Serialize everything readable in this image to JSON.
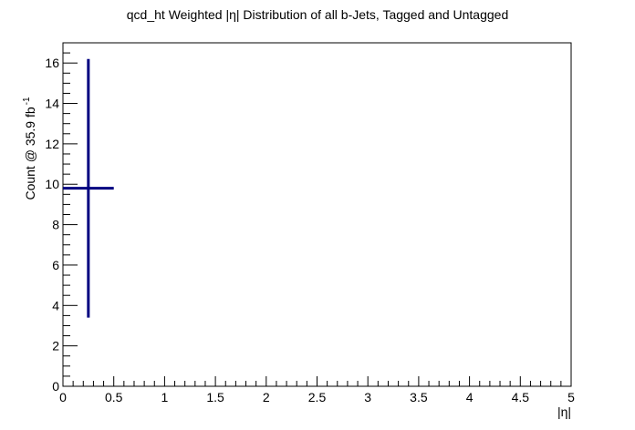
{
  "chart_data": {
    "type": "scatter",
    "title": "qcd_ht Weighted |η| Distribution of all b-Jets, Tagged and Untagged",
    "xlabel": "|η|",
    "ylabel_main": "Count @ 35.9 fb",
    "ylabel_sup": "-1",
    "xlim": [
      0,
      5
    ],
    "ylim": [
      0,
      17
    ],
    "x_ticks": [
      0,
      0.5,
      1,
      1.5,
      2,
      2.5,
      3,
      3.5,
      4,
      4.5,
      5
    ],
    "x_tick_labels": [
      "0",
      "0.5",
      "1",
      "1.5",
      "2",
      "2.5",
      "3",
      "3.5",
      "4",
      "4.5",
      "5"
    ],
    "y_ticks": [
      0,
      2,
      4,
      6,
      8,
      10,
      12,
      14,
      16
    ],
    "y_tick_labels": [
      "0",
      "2",
      "4",
      "6",
      "8",
      "10",
      "12",
      "14",
      "16"
    ],
    "grid": false,
    "series": [
      {
        "color": "#000080",
        "points": [
          {
            "x": 0.25,
            "xerr": 0.25,
            "y": 9.8,
            "ylow": 3.4,
            "yhigh": 16.2
          }
        ]
      }
    ]
  }
}
